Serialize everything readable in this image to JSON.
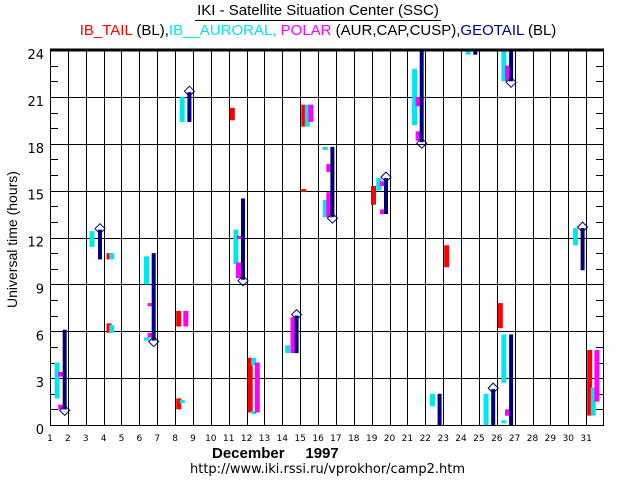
{
  "title": "IKI - Satellite Situation Center (SSC)",
  "legend": [
    {
      "text": "IB_TAIL",
      "color": "#ff0000"
    },
    {
      "text": " (BL),",
      "color": "#000000"
    },
    {
      "text": "IB__AURORAL, ",
      "color": "#00e5ee"
    },
    {
      "text": "POLAR",
      "color": "#ff00ff"
    },
    {
      "text": " (AUR,CAP,CUSP),",
      "color": "#000000"
    },
    {
      "text": "GEOTAIL",
      "color": "#000080"
    },
    {
      "text": " (BL)",
      "color": "#000000"
    }
  ],
  "footer": {
    "month": "December     1997",
    "url": "http://www.iki.rssi.ru/vprokhor/camp2.htm"
  },
  "chart_data": {
    "type": "scatter",
    "title": "IKI - Satellite Situation Center (SSC)",
    "xlabel": "December     1997",
    "ylabel": "Universal time (hours)",
    "xlim": [
      1,
      32
    ],
    "ylim": [
      0,
      24
    ],
    "grid": true,
    "legend_position": "top",
    "x_ticks": [
      "1",
      "2",
      "3",
      "4",
      "5",
      "6",
      "7",
      "8",
      "9",
      "10",
      "11",
      "12",
      "13",
      "14",
      "15",
      "16",
      "17",
      "18",
      "19",
      "20",
      "21",
      "22",
      "23",
      "24",
      "25",
      "26",
      "27",
      "28",
      "29",
      "30",
      "31"
    ],
    "y_ticks": [
      "0",
      "3",
      "6",
      "9",
      "12",
      "15",
      "18",
      "21",
      "24"
    ],
    "colors": {
      "IB_TAIL": "#ff0000",
      "IB_AURORAL": "#00e5ee",
      "POLAR": "#ff00ff",
      "GEOTAIL": "#000080"
    },
    "series": [
      {
        "name": "IB_TAIL",
        "intervals": [
          {
            "day": 4.3,
            "start": 10.6,
            "end": 11.0
          },
          {
            "day": 4.3,
            "start": 5.9,
            "end": 6.5
          },
          {
            "day": 8.2,
            "start": 6.3,
            "end": 7.3
          },
          {
            "day": 8.2,
            "start": 1.0,
            "end": 1.7
          },
          {
            "day": 11.2,
            "start": 19.5,
            "end": 20.3
          },
          {
            "day": 12.2,
            "start": 0.8,
            "end": 4.3
          },
          {
            "day": 15.2,
            "start": 14.95,
            "end": 15.1
          },
          {
            "day": 15.2,
            "start": 19.1,
            "end": 20.5
          },
          {
            "day": 19.1,
            "start": 14.1,
            "end": 15.3
          },
          {
            "day": 23.2,
            "start": 10.1,
            "end": 11.5
          },
          {
            "day": 26.2,
            "start": 6.2,
            "end": 7.8
          },
          {
            "day": 31.2,
            "start": 0.6,
            "end": 4.8
          }
        ]
      },
      {
        "name": "IB_AURORAL",
        "intervals": [
          {
            "day": 1.4,
            "start": 1.7,
            "end": 4.0
          },
          {
            "day": 3.35,
            "start": 11.4,
            "end": 12.4
          },
          {
            "day": 4.45,
            "start": 10.6,
            "end": 11.0
          },
          {
            "day": 4.45,
            "start": 5.9,
            "end": 6.4
          },
          {
            "day": 6.4,
            "start": 9.0,
            "end": 10.8
          },
          {
            "day": 6.4,
            "start": 5.4,
            "end": 5.6
          },
          {
            "day": 8.4,
            "start": 1.4,
            "end": 1.6
          },
          {
            "day": 8.4,
            "start": 19.4,
            "end": 21.0
          },
          {
            "day": 11.4,
            "start": 10.3,
            "end": 12.5
          },
          {
            "day": 12.4,
            "start": 3.8,
            "end": 4.3
          },
          {
            "day": 12.4,
            "start": 0.7,
            "end": 0.9
          },
          {
            "day": 14.3,
            "start": 4.6,
            "end": 5.1
          },
          {
            "day": 15.4,
            "start": 19.1,
            "end": 20.5
          },
          {
            "day": 16.4,
            "start": 17.6,
            "end": 17.8
          },
          {
            "day": 16.4,
            "start": 13.3,
            "end": 14.4
          },
          {
            "day": 19.4,
            "start": 15.0,
            "end": 15.8
          },
          {
            "day": 21.4,
            "start": 19.2,
            "end": 22.8
          },
          {
            "day": 22.4,
            "start": 1.2,
            "end": 2.0
          },
          {
            "day": 24.4,
            "start": 23.7,
            "end": 24.0
          },
          {
            "day": 25.4,
            "start": 0.0,
            "end": 2.0
          },
          {
            "day": 26.4,
            "start": 22.0,
            "end": 24.0
          },
          {
            "day": 26.4,
            "start": 2.7,
            "end": 5.8
          },
          {
            "day": 26.4,
            "start": 0.1,
            "end": 0.3
          },
          {
            "day": 30.4,
            "start": 11.5,
            "end": 12.6
          },
          {
            "day": 31.4,
            "start": 0.6,
            "end": 2.4
          }
        ]
      },
      {
        "name": "POLAR",
        "intervals": [
          {
            "day": 1.6,
            "start": 3.1,
            "end": 3.4
          },
          {
            "day": 1.6,
            "start": 1.0,
            "end": 1.3
          },
          {
            "day": 6.6,
            "start": 7.6,
            "end": 7.8
          },
          {
            "day": 6.6,
            "start": 5.6,
            "end": 5.9
          },
          {
            "day": 8.6,
            "start": 6.3,
            "end": 7.3
          },
          {
            "day": 11.6,
            "start": 11.9,
            "end": 12.1
          },
          {
            "day": 11.55,
            "start": 9.4,
            "end": 10.4
          },
          {
            "day": 12.6,
            "start": 0.8,
            "end": 4.0
          },
          {
            "day": 14.6,
            "start": 4.6,
            "end": 6.9
          },
          {
            "day": 15.6,
            "start": 19.4,
            "end": 20.5
          },
          {
            "day": 16.6,
            "start": 16.2,
            "end": 16.7
          },
          {
            "day": 16.6,
            "start": 13.3,
            "end": 14.9
          },
          {
            "day": 19.6,
            "start": 15.3,
            "end": 15.6
          },
          {
            "day": 19.6,
            "start": 13.5,
            "end": 13.8
          },
          {
            "day": 21.6,
            "start": 20.4,
            "end": 21.0
          },
          {
            "day": 21.6,
            "start": 18.2,
            "end": 18.8
          },
          {
            "day": 26.6,
            "start": 22.0,
            "end": 23.0
          },
          {
            "day": 26.6,
            "start": 0.6,
            "end": 1.0
          },
          {
            "day": 31.6,
            "start": 1.5,
            "end": 4.8
          }
        ]
      },
      {
        "name": "GEOTAIL",
        "intervals": [
          {
            "day": 1.82,
            "start": 1.0,
            "end": 6.1,
            "marker": "bottom"
          },
          {
            "day": 3.8,
            "start": 10.6,
            "end": 12.5,
            "marker": "top"
          },
          {
            "day": 6.8,
            "start": 5.4,
            "end": 11.0,
            "marker": "bottom"
          },
          {
            "day": 8.8,
            "start": 19.4,
            "end": 21.3,
            "marker": "top"
          },
          {
            "day": 11.8,
            "start": 9.3,
            "end": 14.5,
            "marker": "bottom"
          },
          {
            "day": 14.8,
            "start": 4.6,
            "end": 7.0,
            "marker": "top"
          },
          {
            "day": 16.8,
            "start": 13.3,
            "end": 17.8,
            "marker": "bottom"
          },
          {
            "day": 19.8,
            "start": 13.5,
            "end": 15.8,
            "marker": "top"
          },
          {
            "day": 21.8,
            "start": 18.1,
            "end": 24.0,
            "marker": "bottom"
          },
          {
            "day": 22.8,
            "start": 0.0,
            "end": 2.0
          },
          {
            "day": 24.8,
            "start": 23.7,
            "end": 24.0
          },
          {
            "day": 25.8,
            "start": 0.0,
            "end": 2.3,
            "marker": "top"
          },
          {
            "day": 26.8,
            "start": 22.0,
            "end": 24.0,
            "marker": "bottom"
          },
          {
            "day": 26.8,
            "start": 0.0,
            "end": 5.8
          },
          {
            "day": 30.8,
            "start": 9.9,
            "end": 12.6,
            "marker": "top"
          }
        ]
      }
    ]
  }
}
